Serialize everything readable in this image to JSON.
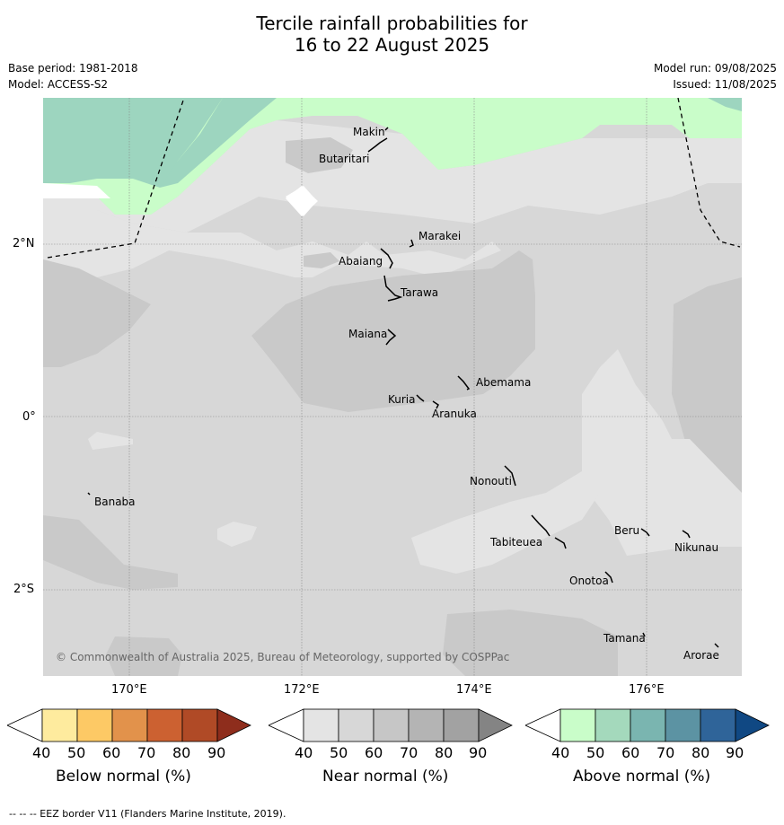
{
  "title": {
    "line1": "Tercile rainfall probabilities for",
    "line2": "16 to 22 August 2025"
  },
  "meta": {
    "base_period": "Base period: 1981-2018",
    "model": "Model: ACCESS-S2",
    "model_run": "Model run: 09/08/2025",
    "issued": "Issued: 11/08/2025"
  },
  "map": {
    "lat_ticks": [
      "2°N",
      "0°",
      "2°S"
    ],
    "lon_ticks": [
      "170°E",
      "172°E",
      "174°E",
      "176°E"
    ],
    "copyright": "© Commonwealth of Australia 2025, Bureau of Meteorology, supported by COSPPac",
    "places": [
      "Makin",
      "Butaritari",
      "Marakei",
      "Abaiang",
      "Tarawa",
      "Maiana",
      "Abemama",
      "Kuria",
      "Aranuka",
      "Nonouti",
      "Banaba",
      "Beru",
      "Nikunau",
      "Tabiteuea",
      "Onotoa",
      "Tamana",
      "Arorae"
    ],
    "colors": {
      "near_40": "#e4e4e4",
      "near_50": "#d7d7d7",
      "near_60": "#c9c9c9",
      "above_40": "#c9fdc9",
      "above_50": "#9dd5bf"
    }
  },
  "colorbars": [
    {
      "label": "Below normal (%)",
      "ticks": [
        "40",
        "50",
        "60",
        "70",
        "80",
        "90"
      ],
      "colors": [
        "#feeb9e",
        "#fdc965",
        "#e2924b",
        "#cc6131",
        "#b04a26",
        "#8e2d1c"
      ]
    },
    {
      "label": "Near normal (%)",
      "ticks": [
        "40",
        "50",
        "60",
        "70",
        "80",
        "90"
      ],
      "colors": [
        "#e4e4e4",
        "#d7d7d7",
        "#c6c6c6",
        "#b4b4b4",
        "#a2a2a2",
        "#848484"
      ]
    },
    {
      "label": "Above normal (%)",
      "ticks": [
        "40",
        "50",
        "60",
        "70",
        "80",
        "90"
      ],
      "colors": [
        "#c9fdc9",
        "#a4d9bc",
        "#7ab5b0",
        "#5c93a3",
        "#2f6499",
        "#104883"
      ]
    }
  ],
  "footer": "--  --  -- EEZ border V11 (Flanders Marine Institute, 2019)."
}
